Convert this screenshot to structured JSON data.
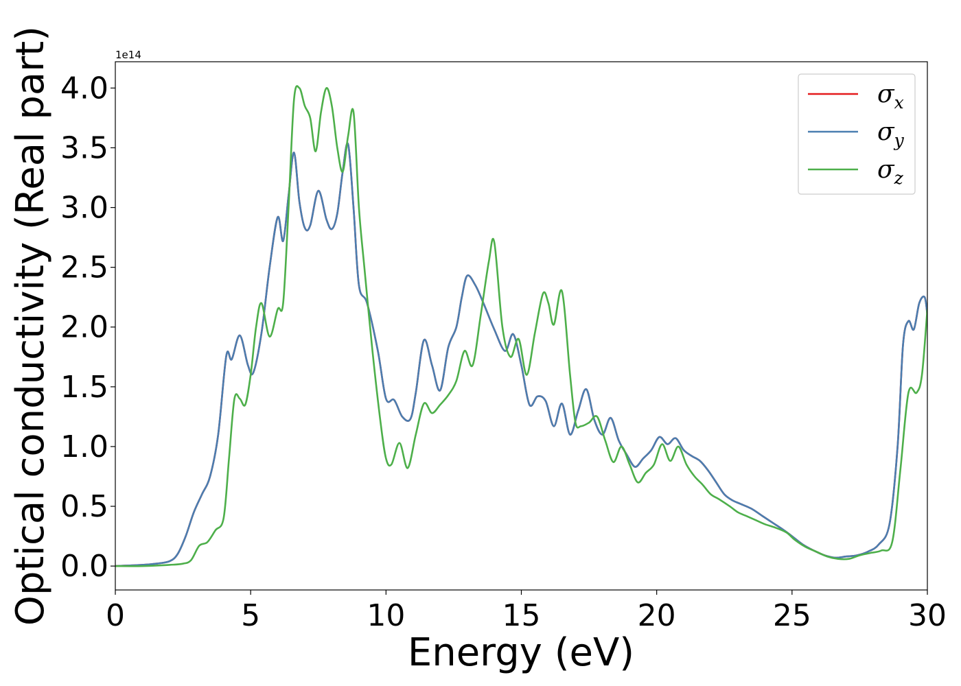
{
  "chart_data": {
    "type": "line",
    "title": "",
    "xlabel": "Energy (eV)",
    "ylabel": "Optical conductivity (Real part)",
    "y_offset_label": "1e14",
    "y_scale": 100000000000000.0,
    "xlim": [
      0,
      30
    ],
    "ylim": [
      -0.2,
      4.22
    ],
    "x_ticks": [
      0,
      5,
      10,
      15,
      20,
      25,
      30
    ],
    "x_tick_labels": [
      "0",
      "5",
      "10",
      "15",
      "20",
      "25",
      "30"
    ],
    "y_ticks": [
      0.0,
      0.5,
      1.0,
      1.5,
      2.0,
      2.5,
      3.0,
      3.5,
      4.0
    ],
    "y_tick_labels": [
      "0.0",
      "0.5",
      "1.0",
      "1.5",
      "2.0",
      "2.5",
      "3.0",
      "3.5",
      "4.0"
    ],
    "grid": false,
    "legend_position": "top-right",
    "series": [
      {
        "name": "σx",
        "base": "σ",
        "sub": "x",
        "color": "#e41a1c",
        "x": [
          0,
          1,
          1.5,
          2,
          2.3,
          2.6,
          2.9,
          3.2,
          3.5,
          3.8,
          4.1,
          4.3,
          4.6,
          4.9,
          5.1,
          5.4,
          5.7,
          6.0,
          6.2,
          6.4,
          6.6,
          6.8,
          7.0,
          7.2,
          7.5,
          7.8,
          8.0,
          8.2,
          8.4,
          8.6,
          8.8,
          9.0,
          9.3,
          9.7,
          10.0,
          10.3,
          10.6,
          10.9,
          11.1,
          11.4,
          11.7,
          12.0,
          12.3,
          12.6,
          12.8,
          13.0,
          13.3,
          13.6,
          14.0,
          14.4,
          14.7,
          15.0,
          15.3,
          15.6,
          15.9,
          16.2,
          16.5,
          16.8,
          17.1,
          17.4,
          17.7,
          18.0,
          18.3,
          18.6,
          18.9,
          19.2,
          19.5,
          19.8,
          20.1,
          20.4,
          20.7,
          21.0,
          21.3,
          21.6,
          21.9,
          22.2,
          22.5,
          22.8,
          23.1,
          23.5,
          23.9,
          24.3,
          24.7,
          25.0,
          25.4,
          25.8,
          26.2,
          26.6,
          27.0,
          27.4,
          27.8,
          28.2,
          28.6,
          28.9,
          29.1,
          29.3,
          29.5,
          29.7,
          29.9,
          30.0
        ],
        "y": [
          0,
          0.01,
          0.02,
          0.04,
          0.1,
          0.25,
          0.45,
          0.6,
          0.75,
          1.1,
          1.76,
          1.73,
          1.93,
          1.68,
          1.62,
          1.95,
          2.5,
          2.92,
          2.72,
          3.1,
          3.46,
          3.05,
          2.83,
          2.85,
          3.14,
          2.9,
          2.82,
          2.95,
          3.3,
          3.53,
          3.0,
          2.35,
          2.2,
          1.8,
          1.4,
          1.39,
          1.25,
          1.23,
          1.45,
          1.89,
          1.68,
          1.47,
          1.83,
          2.0,
          2.25,
          2.43,
          2.35,
          2.2,
          1.98,
          1.8,
          1.94,
          1.68,
          1.35,
          1.42,
          1.38,
          1.17,
          1.36,
          1.1,
          1.3,
          1.48,
          1.22,
          1.1,
          1.24,
          1.05,
          0.93,
          0.83,
          0.9,
          0.97,
          1.08,
          1.02,
          1.07,
          0.97,
          0.92,
          0.88,
          0.8,
          0.7,
          0.6,
          0.55,
          0.52,
          0.48,
          0.42,
          0.36,
          0.3,
          0.25,
          0.18,
          0.13,
          0.09,
          0.07,
          0.08,
          0.09,
          0.12,
          0.18,
          0.35,
          1.0,
          1.85,
          2.05,
          1.98,
          2.2,
          2.25,
          2.1
        ]
      },
      {
        "name": "σy",
        "base": "σ",
        "sub": "y",
        "color": "#4a7eb0",
        "x": [
          0,
          1,
          1.5,
          2,
          2.3,
          2.6,
          2.9,
          3.2,
          3.5,
          3.8,
          4.1,
          4.3,
          4.6,
          4.9,
          5.1,
          5.4,
          5.7,
          6.0,
          6.2,
          6.4,
          6.6,
          6.8,
          7.0,
          7.2,
          7.5,
          7.8,
          8.0,
          8.2,
          8.4,
          8.6,
          8.8,
          9.0,
          9.3,
          9.7,
          10.0,
          10.3,
          10.6,
          10.9,
          11.1,
          11.4,
          11.7,
          12.0,
          12.3,
          12.6,
          12.8,
          13.0,
          13.3,
          13.6,
          14.0,
          14.4,
          14.7,
          15.0,
          15.3,
          15.6,
          15.9,
          16.2,
          16.5,
          16.8,
          17.1,
          17.4,
          17.7,
          18.0,
          18.3,
          18.6,
          18.9,
          19.2,
          19.5,
          19.8,
          20.1,
          20.4,
          20.7,
          21.0,
          21.3,
          21.6,
          21.9,
          22.2,
          22.5,
          22.8,
          23.1,
          23.5,
          23.9,
          24.3,
          24.7,
          25.0,
          25.4,
          25.8,
          26.2,
          26.6,
          27.0,
          27.4,
          27.8,
          28.2,
          28.6,
          28.9,
          29.1,
          29.3,
          29.5,
          29.7,
          29.9,
          30.0
        ],
        "y": [
          0,
          0.01,
          0.02,
          0.04,
          0.1,
          0.25,
          0.45,
          0.6,
          0.75,
          1.1,
          1.76,
          1.73,
          1.93,
          1.68,
          1.62,
          1.95,
          2.5,
          2.92,
          2.72,
          3.1,
          3.46,
          3.05,
          2.83,
          2.85,
          3.14,
          2.9,
          2.82,
          2.95,
          3.3,
          3.53,
          3.0,
          2.35,
          2.2,
          1.8,
          1.4,
          1.39,
          1.25,
          1.23,
          1.45,
          1.89,
          1.68,
          1.47,
          1.83,
          2.0,
          2.25,
          2.43,
          2.35,
          2.2,
          1.98,
          1.8,
          1.94,
          1.68,
          1.35,
          1.42,
          1.38,
          1.17,
          1.36,
          1.1,
          1.3,
          1.48,
          1.22,
          1.1,
          1.24,
          1.05,
          0.93,
          0.83,
          0.9,
          0.97,
          1.08,
          1.02,
          1.07,
          0.97,
          0.92,
          0.88,
          0.8,
          0.7,
          0.6,
          0.55,
          0.52,
          0.48,
          0.42,
          0.36,
          0.3,
          0.25,
          0.18,
          0.13,
          0.09,
          0.07,
          0.08,
          0.09,
          0.12,
          0.18,
          0.35,
          1.0,
          1.85,
          2.05,
          1.98,
          2.2,
          2.25,
          2.1
        ]
      },
      {
        "name": "σz",
        "base": "σ",
        "sub": "z",
        "color": "#4daf4a",
        "x": [
          0,
          1,
          2,
          2.5,
          2.8,
          3.1,
          3.4,
          3.7,
          4.0,
          4.2,
          4.4,
          4.6,
          4.8,
          5.0,
          5.2,
          5.4,
          5.7,
          6.0,
          6.2,
          6.4,
          6.6,
          6.8,
          7.0,
          7.2,
          7.4,
          7.6,
          7.8,
          8.0,
          8.2,
          8.4,
          8.6,
          8.8,
          9.0,
          9.2,
          9.5,
          9.8,
          10.0,
          10.2,
          10.5,
          10.8,
          11.1,
          11.4,
          11.7,
          12.0,
          12.3,
          12.6,
          12.9,
          13.2,
          13.5,
          13.8,
          14.0,
          14.3,
          14.6,
          14.9,
          15.2,
          15.5,
          15.8,
          16.0,
          16.2,
          16.5,
          16.8,
          17.0,
          17.2,
          17.5,
          17.8,
          18.1,
          18.4,
          18.7,
          19.0,
          19.3,
          19.6,
          19.9,
          20.2,
          20.5,
          20.8,
          21.1,
          21.4,
          21.7,
          22.0,
          22.3,
          22.7,
          23.0,
          23.3,
          23.7,
          24.0,
          24.4,
          24.8,
          25.1,
          25.5,
          25.9,
          26.3,
          26.7,
          27.1,
          27.5,
          27.9,
          28.3,
          28.7,
          29.0,
          29.3,
          29.6,
          29.8,
          30.0
        ],
        "y": [
          0,
          0.0,
          0.01,
          0.02,
          0.05,
          0.17,
          0.2,
          0.3,
          0.4,
          0.9,
          1.4,
          1.4,
          1.35,
          1.6,
          2.0,
          2.2,
          1.92,
          2.15,
          2.2,
          3.0,
          3.9,
          4.0,
          3.85,
          3.75,
          3.47,
          3.8,
          4.0,
          3.85,
          3.5,
          3.3,
          3.6,
          3.8,
          3.0,
          2.5,
          1.8,
          1.2,
          0.9,
          0.85,
          1.03,
          0.82,
          1.1,
          1.36,
          1.28,
          1.35,
          1.43,
          1.55,
          1.8,
          1.68,
          2.1,
          2.55,
          2.71,
          2.0,
          1.75,
          1.9,
          1.6,
          1.95,
          2.28,
          2.2,
          2.02,
          2.3,
          1.6,
          1.2,
          1.17,
          1.2,
          1.25,
          1.05,
          0.87,
          1.0,
          0.85,
          0.7,
          0.78,
          0.85,
          1.02,
          0.88,
          1.0,
          0.85,
          0.75,
          0.68,
          0.6,
          0.56,
          0.5,
          0.45,
          0.42,
          0.38,
          0.35,
          0.32,
          0.28,
          0.22,
          0.16,
          0.12,
          0.08,
          0.06,
          0.06,
          0.09,
          0.11,
          0.13,
          0.2,
          0.8,
          1.45,
          1.45,
          1.6,
          2.15
        ]
      }
    ]
  }
}
